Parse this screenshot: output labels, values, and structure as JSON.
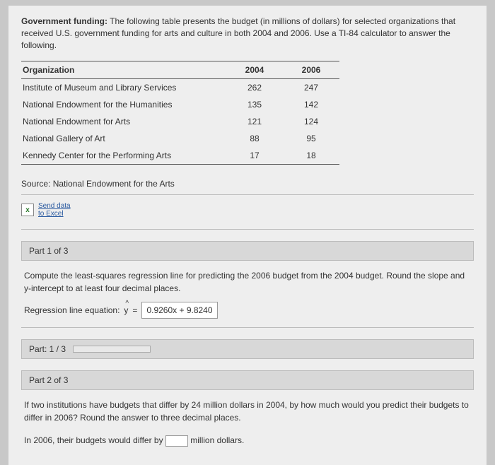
{
  "intro": {
    "bold_label": "Government funding:",
    "text": " The following table presents the budget (in millions of dollars) for selected organizations that received U.S. government funding for arts and culture in both 2004 and 2006. Use a TI-84 calculator to answer the following."
  },
  "table": {
    "columns": [
      "Organization",
      "2004",
      "2006"
    ],
    "rows": [
      [
        "Institute of Museum and Library Services",
        "262",
        "247"
      ],
      [
        "National Endowment for the Humanities",
        "135",
        "142"
      ],
      [
        "National Endowment for Arts",
        "121",
        "124"
      ],
      [
        "National Gallery of Art",
        "88",
        "95"
      ],
      [
        "Kennedy Center for the Performing Arts",
        "17",
        "18"
      ]
    ],
    "col_widths": [
      "290px",
      "80px",
      "80px"
    ]
  },
  "source": "Source: National Endowment for the Arts",
  "excel": {
    "link1": "Send data",
    "link2": "to Excel"
  },
  "part1": {
    "header": "Part 1 of 3",
    "prompt": "Compute the least-squares regression line for predicting the 2006 budget from the 2004 budget. Round the slope and y-intercept to at least four decimal places.",
    "eq_label": "Regression line equation:",
    "yhat": "y",
    "equals": "=",
    "answer": "0.9260x + 9.8240"
  },
  "progress": {
    "label": "Part: 1 / 3",
    "fraction": 0.333,
    "fill_color": "#2a6fb5",
    "track_color": "#e8e8e8"
  },
  "part2": {
    "header": "Part 2 of 3",
    "prompt": "If two institutions have budgets that differ by 24 million dollars in 2004, by how much would you predict their budgets to differ in 2006? Round the answer to three decimal places.",
    "answer_prefix": "In 2006, their budgets would differ by",
    "answer_suffix": "million dollars."
  },
  "colors": {
    "page_bg": "#eeeeee",
    "outer_bg": "#c8c8c8",
    "header_bg": "#d8d8d8",
    "border": "#bbbbbb",
    "link": "#2a5aa0"
  }
}
